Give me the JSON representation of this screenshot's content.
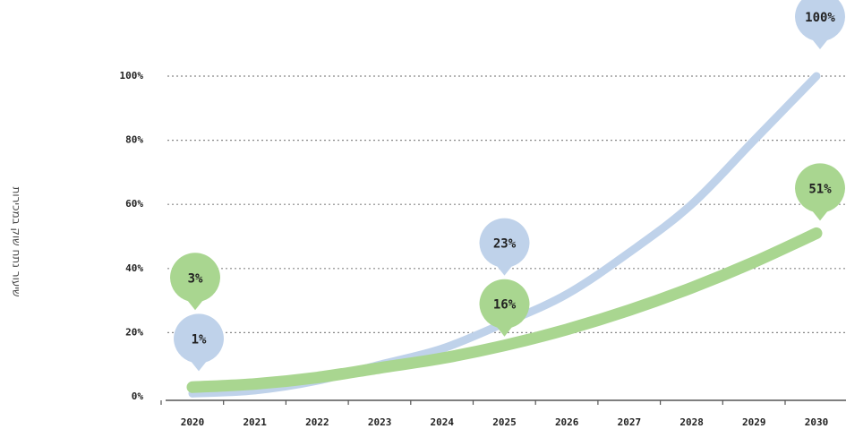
{
  "chart_data": {
    "type": "line",
    "y_label": "שיעור נתח שוק במכירות",
    "categories": [
      "2020",
      "2021",
      "2022",
      "2023",
      "2024",
      "2025",
      "2026",
      "2027",
      "2028",
      "2029",
      "2030"
    ],
    "series": [
      {
        "color": "#bfd2ea",
        "values": [
          1,
          2,
          5,
          10,
          15,
          23,
          32,
          45,
          60,
          80,
          100
        ],
        "value_labels": [
          "1%",
          null,
          null,
          null,
          null,
          "23%",
          null,
          null,
          null,
          null,
          "100%"
        ]
      },
      {
        "color": "#a9d690",
        "values": [
          3,
          4,
          6,
          9,
          12,
          16,
          21,
          27,
          34,
          42,
          51
        ],
        "value_labels": [
          "3%",
          null,
          null,
          null,
          null,
          "16%",
          null,
          null,
          null,
          null,
          "51%"
        ]
      }
    ],
    "ylim": [
      0,
      100
    ],
    "yticks": [
      {
        "value": 0,
        "label": "0%"
      },
      {
        "value": 20,
        "label": "20%"
      },
      {
        "value": 40,
        "label": "40%"
      },
      {
        "value": 60,
        "label": "60%"
      },
      {
        "value": 80,
        "label": "80%"
      },
      {
        "value": 100,
        "label": "100%"
      }
    ],
    "grid": true
  }
}
